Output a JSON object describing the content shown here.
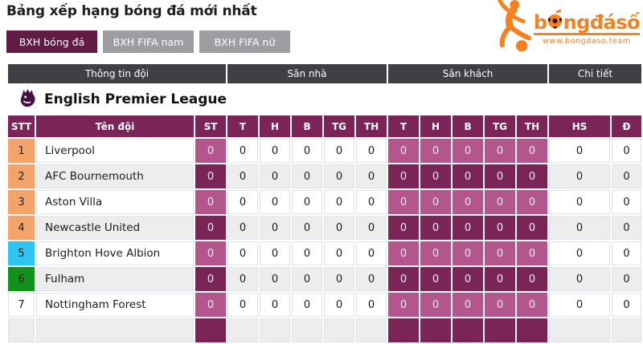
{
  "page": {
    "title": "Bảng xếp hạng bóng đá mới nhất"
  },
  "tabs": [
    {
      "label": "BXH bóng đá",
      "active": true
    },
    {
      "label": "BXH FIFA nam",
      "active": false
    },
    {
      "label": "BXH FIFA nữ",
      "active": false
    }
  ],
  "logo": {
    "word_prefix": "b",
    "word_suffix": "ngđásố",
    "site": "www.bongdaso.team",
    "brand_color": "#f58220"
  },
  "table": {
    "league": "English Premier League",
    "groups": [
      {
        "label": "Thông tin đội",
        "span": 3
      },
      {
        "label": "Sân nhà",
        "span": 5
      },
      {
        "label": "Sân khách",
        "span": 5
      },
      {
        "label": "Chi tiết",
        "span": 2
      }
    ],
    "columns": [
      "STT",
      "Tên đội",
      "ST",
      "T",
      "H",
      "B",
      "TG",
      "TH",
      "T",
      "H",
      "B",
      "TG",
      "TH",
      "HS",
      "Đ"
    ],
    "colors": {
      "header_purple": "#7b2457",
      "accent_pink": "#b2568d",
      "group_gray": "#3f3f45",
      "rank_champion": "#f4a46b",
      "rank_blue": "#2ec5f4",
      "rank_green": "#12921d",
      "row_alt": "#ededed"
    },
    "rows": [
      {
        "rank": "1",
        "team": "Liverpool",
        "rank_color": "#f4a46b",
        "values": [
          "0",
          "0",
          "0",
          "0",
          "0",
          "0",
          "0",
          "0",
          "0",
          "0",
          "0",
          "0",
          "0"
        ]
      },
      {
        "rank": "2",
        "team": "AFC Bournemouth",
        "rank_color": "#f4a46b",
        "values": [
          "0",
          "0",
          "0",
          "0",
          "0",
          "0",
          "0",
          "0",
          "0",
          "0",
          "0",
          "0",
          "0"
        ]
      },
      {
        "rank": "3",
        "team": "Aston Villa",
        "rank_color": "#f4a46b",
        "values": [
          "0",
          "0",
          "0",
          "0",
          "0",
          "0",
          "0",
          "0",
          "0",
          "0",
          "0",
          "0",
          "0"
        ]
      },
      {
        "rank": "4",
        "team": "Newcastle United",
        "rank_color": "#f4a46b",
        "values": [
          "0",
          "0",
          "0",
          "0",
          "0",
          "0",
          "0",
          "0",
          "0",
          "0",
          "0",
          "0",
          "0"
        ]
      },
      {
        "rank": "5",
        "team": "Brighton Hove Albion",
        "rank_color": "#2ec5f4",
        "values": [
          "0",
          "0",
          "0",
          "0",
          "0",
          "0",
          "0",
          "0",
          "0",
          "0",
          "0",
          "0",
          "0"
        ]
      },
      {
        "rank": "6",
        "team": "Fulham",
        "rank_color": "#12921d",
        "values": [
          "0",
          "0",
          "0",
          "0",
          "0",
          "0",
          "0",
          "0",
          "0",
          "0",
          "0",
          "0",
          "0"
        ]
      },
      {
        "rank": "7",
        "team": "Nottingham Forest",
        "rank_color": "",
        "values": [
          "0",
          "0",
          "0",
          "0",
          "0",
          "0",
          "0",
          "0",
          "0",
          "0",
          "0",
          "0",
          "0"
        ]
      },
      {
        "rank": "",
        "team": "",
        "rank_color": "",
        "values": [
          "",
          "",
          "",
          "",
          "",
          "",
          "",
          "",
          "",
          "",
          "",
          "",
          ""
        ]
      }
    ]
  }
}
